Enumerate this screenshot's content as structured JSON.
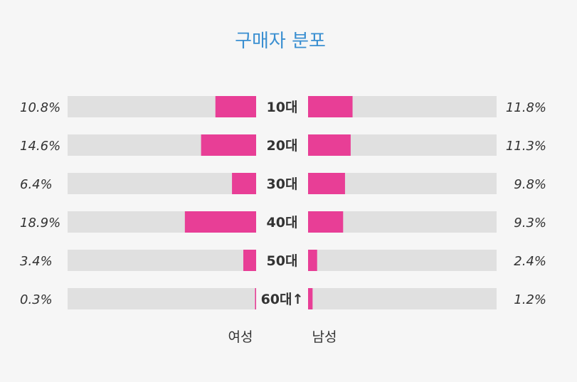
{
  "chart_data": {
    "type": "bar",
    "title": "구매자 분포",
    "categories": [
      "10대",
      "20대",
      "30대",
      "40대",
      "50대",
      "60대↑"
    ],
    "series": [
      {
        "name": "여성",
        "values": [
          10.8,
          14.6,
          6.4,
          18.9,
          3.4,
          0.3
        ],
        "labels": [
          "10.8%",
          "14.6%",
          "6.4%",
          "18.9%",
          "3.4%",
          "0.3%"
        ]
      },
      {
        "name": "남성",
        "values": [
          11.8,
          11.3,
          9.8,
          9.3,
          2.4,
          1.2
        ],
        "labels": [
          "11.8%",
          "11.3%",
          "9.8%",
          "9.3%",
          "2.4%",
          "1.2%"
        ]
      }
    ],
    "xlim": [
      0,
      50
    ],
    "bar_color": "#e83e96",
    "track_color": "#e0e0e0"
  }
}
